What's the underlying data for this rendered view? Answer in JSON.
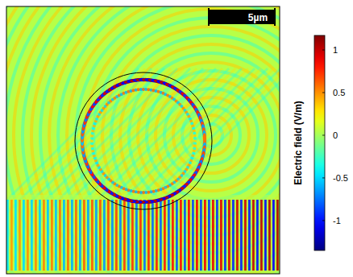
{
  "chart_data": {
    "type": "field_map",
    "scale_bar": "5µm",
    "colorbar": {
      "label": "Electric field (V/m)",
      "range": [
        -1.35,
        1.17
      ],
      "ticks": [
        1,
        0.5,
        0,
        -0.5,
        -1
      ]
    }
  }
}
